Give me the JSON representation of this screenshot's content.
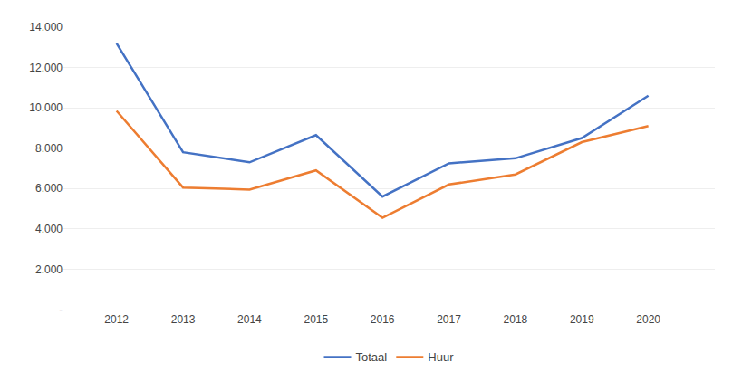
{
  "chart_data": {
    "type": "line",
    "x": [
      2012,
      2013,
      2014,
      2015,
      2016,
      2017,
      2018,
      2019,
      2020
    ],
    "series": [
      {
        "name": "Totaal",
        "color": "#4472C4",
        "values": [
          13200,
          7800,
          7300,
          8650,
          5600,
          7250,
          7500,
          8500,
          10600
        ]
      },
      {
        "name": "Huur",
        "color": "#ED7D31",
        "values": [
          9850,
          6050,
          5950,
          6900,
          4550,
          6200,
          6700,
          8300,
          9100
        ]
      }
    ],
    "xlim": [
      2011.2,
      2021.0
    ],
    "xticks": [
      2012,
      2013,
      2014,
      2015,
      2016,
      2017,
      2018,
      2019,
      2020
    ],
    "ylim": [
      0,
      14000
    ],
    "yticks": [
      {
        "value": 0,
        "label": "-"
      },
      {
        "value": 2000,
        "label": "2.000"
      },
      {
        "value": 4000,
        "label": "4.000"
      },
      {
        "value": 6000,
        "label": "6.000"
      },
      {
        "value": 8000,
        "label": "8.000"
      },
      {
        "value": 10000,
        "label": "10.000"
      },
      {
        "value": 12000,
        "label": "12.000"
      },
      {
        "value": 14000,
        "label": "14.000"
      }
    ],
    "grid": true,
    "legend": "bottom"
  }
}
